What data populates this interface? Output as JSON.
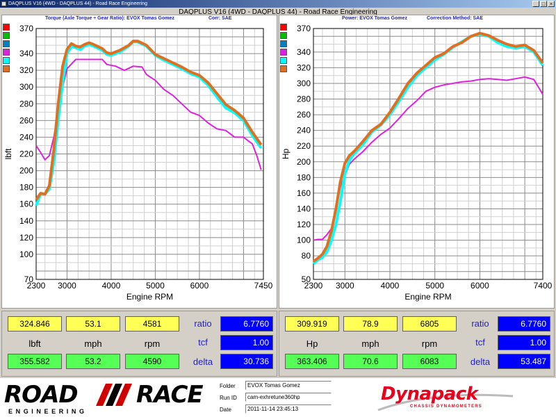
{
  "window": {
    "title": "DAQPLUS V16 (4WD - DAQPLUS 44) - Road Race Engineering",
    "buttons": [
      "_",
      "□",
      "×"
    ]
  },
  "app_title": "DAQPLUS V16 (4WD - DAQPLUS 44) - Road Race Engineering",
  "left_panel": {
    "header_main": "Torque (Axle Torque ÷ Gear Ratio): EVOX Tomas Gomez",
    "header_corr": "Corr: SAE"
  },
  "right_panel": {
    "header_main": "Power: EVOX Tomas Gomez",
    "header_corr": "Correction Method: SAE"
  },
  "series_colors": [
    "#ff0000",
    "#00c000",
    "#0080c0",
    "#e020e0",
    "#00ffff",
    "#e07020"
  ],
  "chart_data": [
    {
      "type": "line",
      "xlabel": "Engine RPM",
      "ylabel": "lbft",
      "x_ticks": [
        2300,
        3000,
        4000,
        5000,
        6000,
        7450
      ],
      "y_ticks": [
        70,
        100,
        120,
        140,
        160,
        180,
        200,
        220,
        240,
        260,
        280,
        300,
        320,
        340,
        370
      ],
      "xlim": [
        2300,
        7450
      ],
      "ylim": [
        70,
        370
      ],
      "grid": true,
      "series": [
        {
          "color": "#e020e0",
          "x": [
            2300,
            2400,
            2500,
            2600,
            2700,
            2800,
            2900,
            3000,
            3200,
            3400,
            3600,
            3800,
            3900,
            4100,
            4300,
            4500,
            4700,
            4800,
            5000,
            5200,
            5400,
            5600,
            5800,
            6000,
            6200,
            6400,
            6600,
            6800,
            7000,
            7200,
            7300,
            7400
          ],
          "y": [
            230,
            222,
            213,
            218,
            240,
            270,
            300,
            322,
            333,
            333,
            333,
            333,
            327,
            325,
            320,
            325,
            324,
            315,
            308,
            297,
            290,
            280,
            270,
            266,
            257,
            250,
            248,
            240,
            240,
            232,
            218,
            201
          ]
        },
        {
          "color": "#00ffff",
          "x": [
            2300,
            2400,
            2500,
            2600,
            2700,
            2800,
            2900,
            3000,
            3100,
            3200,
            3300,
            3400,
            3500,
            3600,
            3800,
            3900,
            4000,
            4200,
            4400,
            4500,
            4600,
            4800,
            5000,
            5200,
            5400,
            5600,
            5800,
            6000,
            6200,
            6400,
            6600,
            6800,
            7000,
            7200,
            7400
          ],
          "y": [
            158,
            172,
            172,
            178,
            210,
            260,
            305,
            340,
            349,
            347,
            345,
            349,
            351,
            349,
            344,
            339,
            338,
            342,
            349,
            354,
            354,
            349,
            338,
            332,
            327,
            322,
            316,
            312,
            302,
            288,
            275,
            269,
            260,
            242,
            227
          ]
        },
        {
          "color": "#e07020",
          "x": [
            2300,
            2400,
            2500,
            2600,
            2700,
            2800,
            2900,
            3000,
            3100,
            3200,
            3300,
            3400,
            3500,
            3600,
            3800,
            3900,
            4000,
            4200,
            4400,
            4500,
            4600,
            4800,
            5000,
            5200,
            5400,
            5600,
            5800,
            6000,
            6200,
            6400,
            6600,
            6800,
            7000,
            7200,
            7400
          ],
          "y": [
            165,
            173,
            172,
            182,
            225,
            280,
            325,
            345,
            352,
            349,
            348,
            351,
            353,
            351,
            346,
            341,
            340,
            344,
            350,
            355,
            355,
            350,
            339,
            334,
            329,
            324,
            318,
            314,
            305,
            292,
            279,
            272,
            263,
            246,
            231
          ]
        }
      ]
    },
    {
      "type": "line",
      "xlabel": "Engine RPM",
      "ylabel": "Hp",
      "x_ticks": [
        2300,
        3000,
        4000,
        5000,
        6000,
        7400
      ],
      "y_ticks": [
        50,
        80,
        100,
        120,
        140,
        160,
        180,
        200,
        220,
        240,
        260,
        280,
        300,
        320,
        340,
        370
      ],
      "xlim": [
        2300,
        7400
      ],
      "ylim": [
        50,
        370
      ],
      "grid": true,
      "series": [
        {
          "color": "#e020e0",
          "x": [
            2300,
            2400,
            2500,
            2600,
            2700,
            2800,
            2900,
            3000,
            3100,
            3200,
            3400,
            3600,
            3800,
            4000,
            4200,
            4400,
            4600,
            4800,
            5000,
            5200,
            5400,
            5600,
            5800,
            6000,
            6200,
            6400,
            6600,
            6800,
            7000,
            7200,
            7400
          ],
          "y": [
            100,
            101,
            101,
            107,
            115,
            140,
            168,
            183,
            197,
            203,
            213,
            225,
            235,
            243,
            255,
            268,
            278,
            290,
            295,
            298,
            300,
            302,
            303,
            305,
            306,
            305,
            304,
            306,
            308,
            305,
            286
          ]
        },
        {
          "color": "#00ffff",
          "x": [
            2300,
            2400,
            2500,
            2600,
            2700,
            2800,
            2900,
            3000,
            3100,
            3200,
            3400,
            3600,
            3800,
            4000,
            4200,
            4400,
            4600,
            4800,
            5000,
            5200,
            5400,
            5600,
            5800,
            6000,
            6200,
            6400,
            6600,
            6800,
            7000,
            7200,
            7400
          ],
          "y": [
            70,
            75,
            78,
            85,
            100,
            120,
            150,
            185,
            202,
            210,
            222,
            238,
            247,
            260,
            277,
            295,
            310,
            320,
            330,
            337,
            346,
            353,
            360,
            363,
            360,
            352,
            347,
            345,
            347,
            340,
            323
          ]
        },
        {
          "color": "#e07020",
          "x": [
            2300,
            2400,
            2500,
            2600,
            2700,
            2800,
            2900,
            3000,
            3100,
            3200,
            3400,
            3600,
            3800,
            4000,
            4200,
            4400,
            4600,
            4800,
            5000,
            5200,
            5400,
            5600,
            5800,
            6000,
            6200,
            6400,
            6600,
            6800,
            7000,
            7200,
            7400
          ],
          "y": [
            73,
            77,
            82,
            92,
            112,
            140,
            175,
            198,
            208,
            213,
            226,
            240,
            248,
            263,
            281,
            300,
            313,
            323,
            333,
            338,
            347,
            352,
            360,
            364,
            361,
            355,
            350,
            347,
            349,
            342,
            326
          ]
        }
      ]
    }
  ],
  "left_stats": {
    "top": [
      "324.846",
      "53.1",
      "4581"
    ],
    "labels": [
      "lbft",
      "mph",
      "rpm"
    ],
    "bottom": [
      "355.582",
      "53.2",
      "4590"
    ],
    "ratio_label": "ratio",
    "ratio_value": "6.7760",
    "tcf_label": "tcf",
    "tcf_value": "1.00",
    "delta_label": "delta",
    "delta_value": "30.736"
  },
  "right_stats": {
    "top": [
      "309.919",
      "78.9",
      "6805"
    ],
    "labels": [
      "Hp",
      "mph",
      "rpm"
    ],
    "bottom": [
      "363.406",
      "70.6",
      "6083"
    ],
    "ratio_label": "ratio",
    "ratio_value": "6.7760",
    "tcf_label": "tcf",
    "tcf_value": "1.00",
    "delta_label": "delta",
    "delta_value": "53.487"
  },
  "footer": {
    "logo_left": "ROAD",
    "logo_right": "RACE",
    "logo_sub": "ENGINEERING",
    "folder_label": "Folder",
    "folder_value": "EVOX Tomas Gomez",
    "runid_label": "Run ID",
    "runid_value": "cam-exhretune360hp",
    "date_label": "Date",
    "date_value": "2011-11-14 23:45:13",
    "brand": "Dynapack",
    "brand_sub": "CHASSIS DYNAMOMETERS"
  }
}
